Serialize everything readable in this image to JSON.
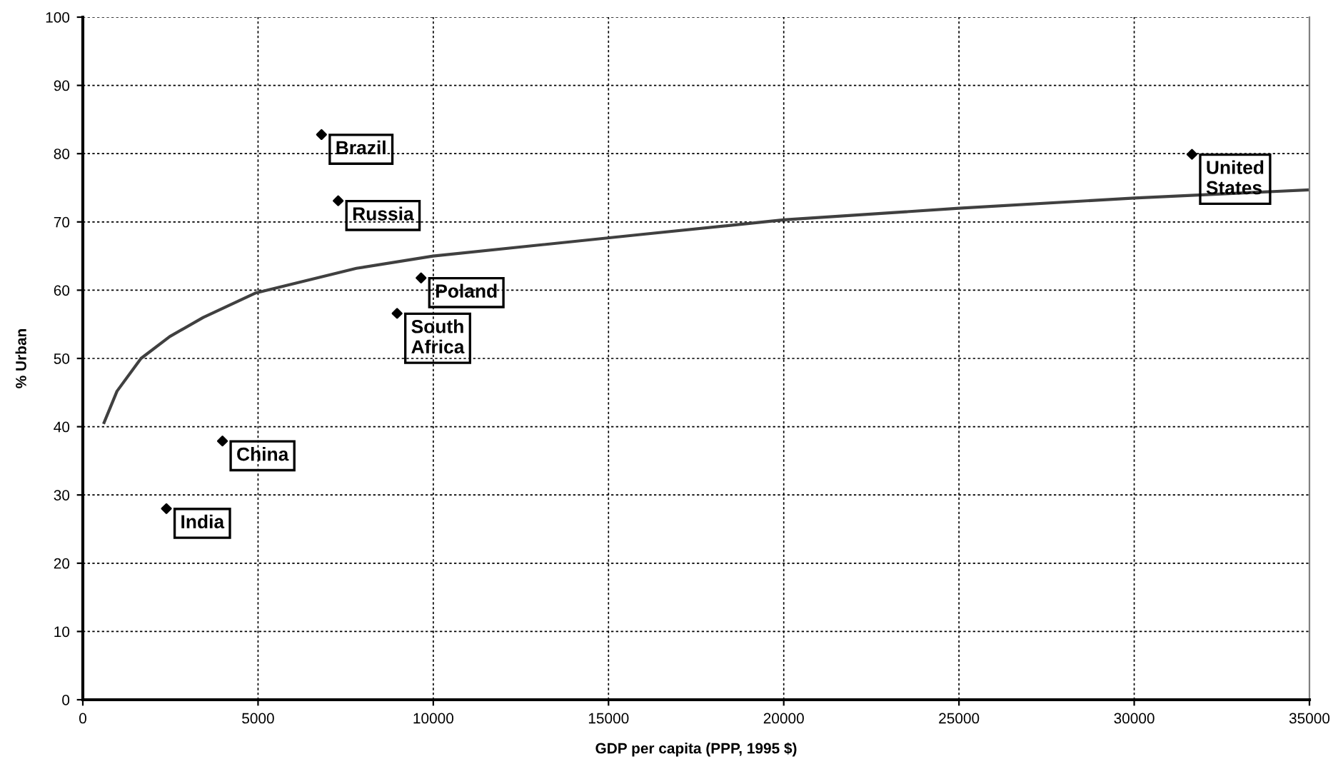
{
  "chart_data": {
    "type": "scatter",
    "xlabel": "GDP per capita (PPP, 1995 $)",
    "ylabel": "% Urban",
    "series": [
      {
        "color": "#000000",
        "marker": "diamond",
        "x": [
          2385,
          3984,
          6811,
          7287,
          9652,
          8967,
          31648
        ],
        "values": [
          28.0,
          37.9,
          82.8,
          73.1,
          61.8,
          56.6,
          79.9
        ]
      },
      {
        "type": "line",
        "color": "#404040",
        "marker": "none",
        "line_style": "solid",
        "x": [
          607,
          975,
          1660,
          2480,
          3434,
          4939,
          7807,
          9992,
          16004,
          20000,
          25000,
          30000,
          35000
        ],
        "values": [
          40.6,
          45.2,
          50.0,
          53.2,
          56.0,
          59.6,
          63.2,
          65.0,
          68.2,
          70.3,
          72.0,
          73.5,
          74.7
        ]
      }
    ],
    "annotations": [
      {
        "text": "India",
        "x": 2385,
        "y": 28.0
      },
      {
        "text": "China",
        "x": 3984,
        "y": 37.9
      },
      {
        "text": "Brazil",
        "x": 6811,
        "y": 82.8
      },
      {
        "text": "Russia",
        "x": 7287,
        "y": 73.1
      },
      {
        "text": "Poland",
        "x": 9652,
        "y": 61.8
      },
      {
        "text": "South\nAfrica",
        "x": 8967,
        "y": 56.6
      },
      {
        "text": "United\nStates",
        "x": 31648,
        "y": 79.9
      }
    ],
    "xlim": [
      0,
      35000
    ],
    "xticks": [
      0,
      5000,
      10000,
      15000,
      20000,
      25000,
      30000,
      35000
    ],
    "ylim": [
      0,
      100
    ],
    "yticks": [
      0,
      10,
      20,
      30,
      40,
      50,
      60,
      70,
      80,
      90,
      100
    ],
    "grid": true,
    "legend": false
  }
}
